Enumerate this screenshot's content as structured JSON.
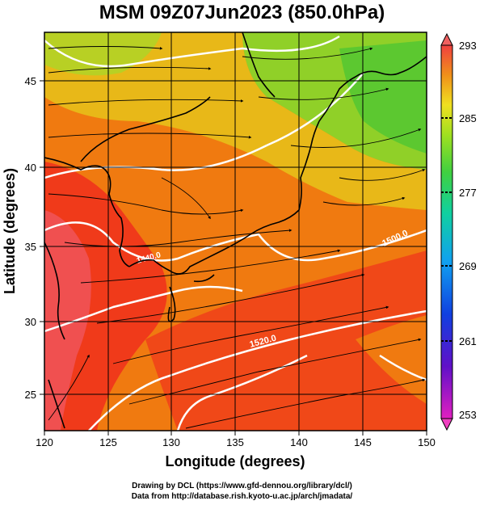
{
  "title": "MSM 09Z07Jun2023 (850.0hPa)",
  "xlabel": "Longitude (degrees)",
  "ylabel": "Latitude  (degrees)",
  "x_ticks": [
    "120",
    "125",
    "130",
    "135",
    "140",
    "145",
    "150"
  ],
  "y_ticks": [
    "25",
    "30",
    "35",
    "40",
    "45"
  ],
  "colorbar_ticks": [
    "293",
    "285",
    "277",
    "269",
    "261",
    "253"
  ],
  "contour_labels": [
    "1440.0",
    "1520.0",
    "1500.0"
  ],
  "credit_line1": "Drawing by DCL (https://www.gfd-dennou.org/library/dcl/)",
  "credit_line2": "Data from http://database.rish.kyoto-u.ac.jp/arch/jmadata/",
  "colors": {
    "warm_red": "#f03a1a",
    "orange": "#f07a10",
    "yellow": "#e8d020",
    "green": "#70d030",
    "contour": "#ffffff",
    "streamline": "#000000"
  }
}
